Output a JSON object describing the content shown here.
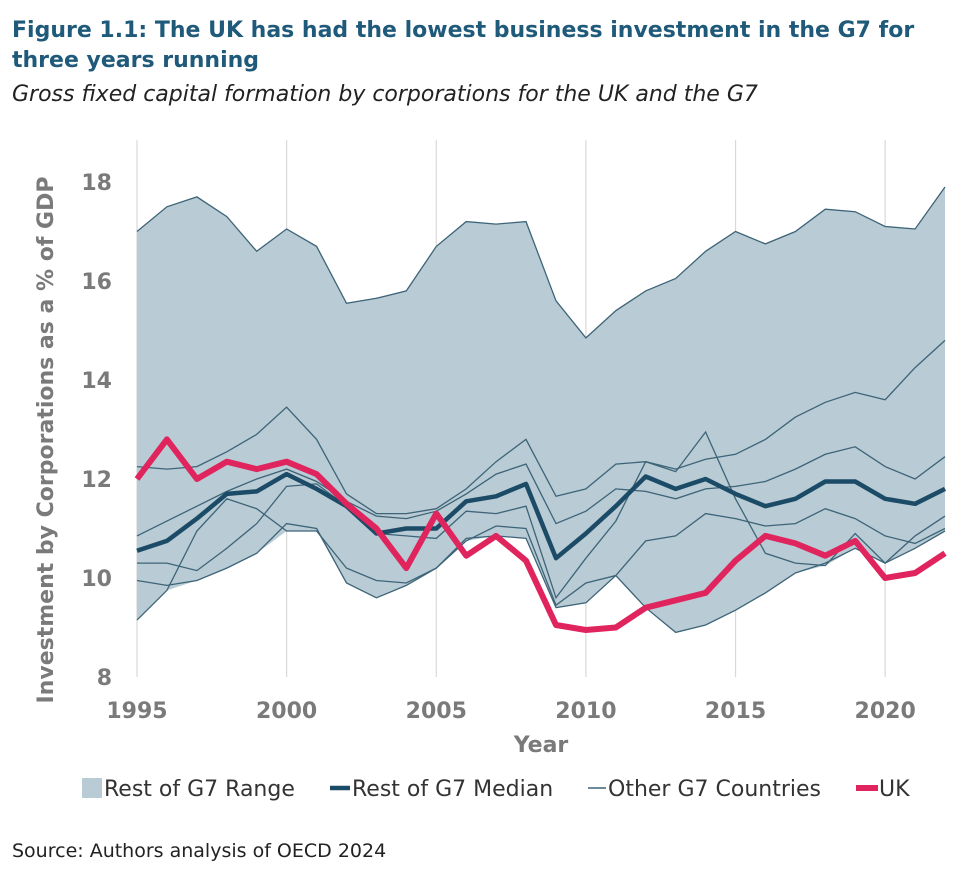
{
  "title": "Figure 1.1: The UK has had the lowest business investment in the G7 for three years running",
  "subtitle": "Gross fixed capital formation by corporations for the UK and the G7",
  "source": "Source: Authors analysis of OECD 2024",
  "chart_data": {
    "type": "line",
    "xlabel": "Year",
    "ylabel": "Investment by Corporations as a % of GDP",
    "xlim": [
      1995,
      2022
    ],
    "ylim": [
      8,
      19
    ],
    "xticks": [
      1995,
      2000,
      2005,
      2010,
      2015,
      2020
    ],
    "yticks": [
      8,
      10,
      12,
      14,
      16,
      18
    ],
    "grid": "vertical",
    "legend_placement": "bottom",
    "legend": [
      "Rest of G7 Range",
      "Rest of G7 Median",
      "Other G7 Countries",
      "UK"
    ],
    "colors": {
      "range": "#b9cbd4",
      "median": "#1b4b66",
      "other": "#3d6478",
      "uk": "#e0245e"
    },
    "x": [
      1995,
      1996,
      1997,
      1998,
      1999,
      2000,
      2001,
      2002,
      2003,
      2004,
      2005,
      2006,
      2007,
      2008,
      2009,
      2010,
      2011,
      2012,
      2013,
      2014,
      2015,
      2016,
      2017,
      2018,
      2019,
      2020,
      2021,
      2022
    ],
    "uk": [
      12.0,
      12.8,
      12.0,
      12.35,
      12.2,
      12.35,
      12.1,
      11.5,
      11.0,
      10.2,
      11.3,
      10.45,
      10.85,
      10.35,
      9.05,
      8.95,
      9.0,
      9.4,
      9.55,
      9.7,
      10.35,
      10.85,
      10.7,
      10.45,
      10.75,
      10.0,
      10.1,
      10.5
    ],
    "median": [
      10.55,
      10.75,
      11.2,
      11.7,
      11.75,
      12.1,
      11.8,
      11.45,
      10.9,
      11.0,
      11.0,
      11.55,
      11.65,
      11.9,
      10.4,
      10.9,
      11.45,
      12.05,
      11.8,
      12.0,
      11.7,
      11.45,
      11.6,
      11.95,
      11.95,
      11.6,
      11.5,
      11.8
    ],
    "other_countries": [
      [
        17.0,
        17.5,
        17.7,
        17.3,
        16.6,
        17.05,
        16.7,
        15.55,
        15.65,
        15.8,
        16.7,
        17.2,
        17.15,
        17.2,
        15.6,
        14.85,
        15.4,
        15.8,
        16.05,
        16.6,
        17.0,
        16.75,
        17.0,
        17.45,
        17.4,
        17.1,
        17.05,
        17.9
      ],
      [
        12.25,
        12.2,
        12.25,
        12.55,
        12.9,
        13.45,
        12.8,
        11.7,
        11.3,
        11.3,
        11.4,
        11.8,
        12.35,
        12.8,
        11.65,
        11.8,
        12.3,
        12.35,
        12.2,
        12.4,
        12.5,
        12.8,
        13.25,
        13.55,
        13.75,
        13.6,
        14.25,
        14.8
      ],
      [
        10.85,
        11.15,
        11.45,
        11.75,
        12.0,
        12.2,
        11.95,
        11.55,
        11.25,
        11.2,
        11.35,
        11.7,
        12.1,
        12.3,
        11.1,
        11.35,
        11.8,
        11.75,
        11.6,
        11.8,
        11.85,
        11.95,
        12.2,
        12.5,
        12.65,
        12.25,
        12.0,
        12.45
      ],
      [
        10.3,
        10.3,
        10.15,
        10.6,
        11.1,
        11.85,
        11.9,
        11.45,
        10.9,
        10.85,
        10.8,
        11.35,
        11.3,
        11.45,
        9.6,
        10.4,
        11.15,
        12.35,
        12.15,
        12.95,
        11.6,
        10.5,
        10.3,
        10.25,
        10.9,
        10.3,
        10.85,
        11.25
      ],
      [
        9.15,
        9.75,
        10.95,
        11.6,
        11.4,
        10.95,
        10.95,
        10.2,
        9.95,
        9.9,
        10.2,
        10.75,
        11.05,
        11.0,
        9.45,
        9.9,
        10.05,
        10.75,
        10.85,
        11.3,
        11.2,
        11.05,
        11.1,
        11.4,
        11.2,
        10.85,
        10.7,
        11.0
      ],
      [
        9.95,
        9.85,
        9.95,
        10.2,
        10.5,
        11.1,
        11.0,
        9.9,
        9.6,
        9.85,
        10.2,
        10.8,
        10.85,
        10.8,
        9.4,
        9.5,
        10.05,
        9.4,
        8.9,
        9.05,
        9.35,
        9.7,
        10.1,
        10.3,
        10.6,
        10.3,
        10.6,
        10.95
      ]
    ]
  }
}
